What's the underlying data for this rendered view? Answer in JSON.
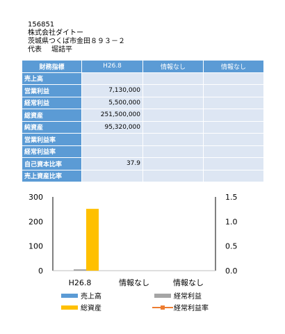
{
  "company": {
    "code": "156851",
    "name": "株式会社ダイトー",
    "address": "茨城県つくば市金田８９３－２",
    "rep_title": "代表",
    "rep_name": "堀詰平"
  },
  "table": {
    "headers": [
      "財務指標",
      "H26.8",
      "情報なし",
      "情報なし"
    ],
    "rows": [
      {
        "label": "売上高",
        "values": [
          "",
          "",
          ""
        ]
      },
      {
        "label": "営業利益",
        "values": [
          "7,130,000",
          "",
          ""
        ]
      },
      {
        "label": "経常利益",
        "values": [
          "5,500,000",
          "",
          ""
        ]
      },
      {
        "label": "総資産",
        "values": [
          "251,500,000",
          "",
          ""
        ]
      },
      {
        "label": "純資産",
        "values": [
          "95,320,000",
          "",
          ""
        ]
      },
      {
        "label": "営業利益率",
        "values": [
          "",
          "",
          ""
        ]
      },
      {
        "label": "経常利益率",
        "values": [
          "",
          "",
          ""
        ]
      },
      {
        "label": "自己資本比率",
        "values": [
          "37.9",
          "",
          ""
        ]
      },
      {
        "label": "売上資産比率",
        "values": [
          "",
          "",
          ""
        ]
      }
    ]
  },
  "chart_data": {
    "type": "bar",
    "categories": [
      "H26.8",
      "情報なし",
      "情報なし"
    ],
    "ylim_left": [
      0,
      300
    ],
    "yticks_left": [
      "0",
      "100",
      "200",
      "300"
    ],
    "ylim_right": [
      0,
      1.5
    ],
    "yticks_right": [
      "0.0",
      "0.5",
      "1.0",
      "1.5"
    ],
    "series": [
      {
        "name": "売上高",
        "kind": "bar",
        "axis": "left",
        "color": "#5b9bd5",
        "values": [
          0,
          null,
          null
        ]
      },
      {
        "name": "経常利益",
        "kind": "bar",
        "axis": "left",
        "color": "#a5a5a5",
        "values": [
          5.5,
          null,
          null
        ]
      },
      {
        "name": "総資産",
        "kind": "bar",
        "axis": "left",
        "color": "#ffc000",
        "values": [
          251.5,
          null,
          null
        ]
      },
      {
        "name": "経常利益率",
        "kind": "line",
        "axis": "right",
        "color": "#ed7d31",
        "values": [
          null,
          null,
          null
        ]
      }
    ],
    "grid": false,
    "legend": "bottom"
  }
}
